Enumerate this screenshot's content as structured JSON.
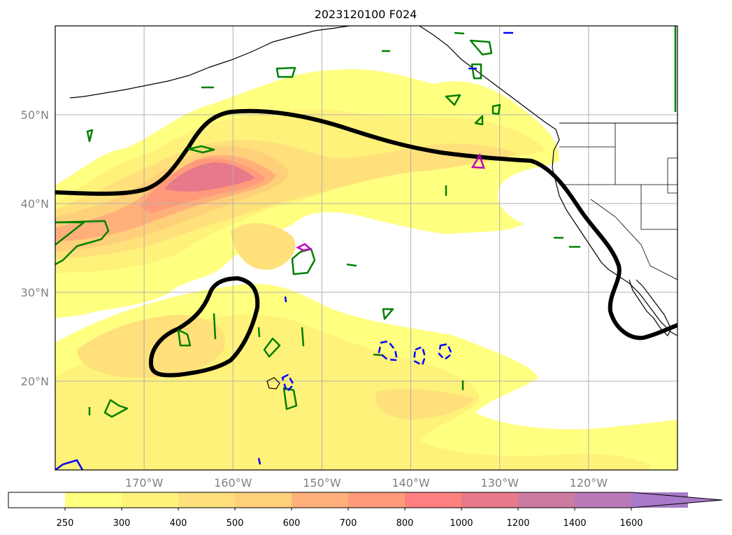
{
  "title": "2023120100 F024",
  "map": {
    "lat_labels": [
      "50°N",
      "40°N",
      "30°N",
      "20°N"
    ],
    "lon_labels": [
      "170°W",
      "160°W",
      "150°W",
      "140°W",
      "130°W",
      "120°W"
    ],
    "lat_values": [
      50,
      40,
      30,
      20
    ],
    "lon_values": [
      -170,
      -160,
      -150,
      -140,
      -130,
      -120
    ],
    "lon_range": [
      -180,
      -110
    ],
    "lat_range": [
      10,
      60
    ],
    "shading_variable_levels": [
      "250",
      "300",
      "400",
      "500",
      "600",
      "700",
      "800",
      "1000",
      "1200",
      "1400",
      "1600"
    ]
  },
  "colorbar": {
    "labels": [
      "250",
      "300",
      "400",
      "500",
      "600",
      "700",
      "800",
      "1000",
      "1200",
      "1400",
      "1600"
    ],
    "colors": [
      "#ffffff",
      "#ffff80",
      "#fff27a",
      "#ffe07a",
      "#ffd07a",
      "#ffb07a",
      "#ff9a7a",
      "#ff8080",
      "#e67a8a",
      "#cc7aa0",
      "#b87ab8",
      "#a87ac8"
    ],
    "extend": "max"
  },
  "colors": {
    "thick_contour": "#000000",
    "green_contours": "#008000",
    "blue_contours": "#0000ff",
    "magenta_contours": "#c000c0",
    "coastline": "#000000",
    "grid": "#b0b0b0"
  }
}
